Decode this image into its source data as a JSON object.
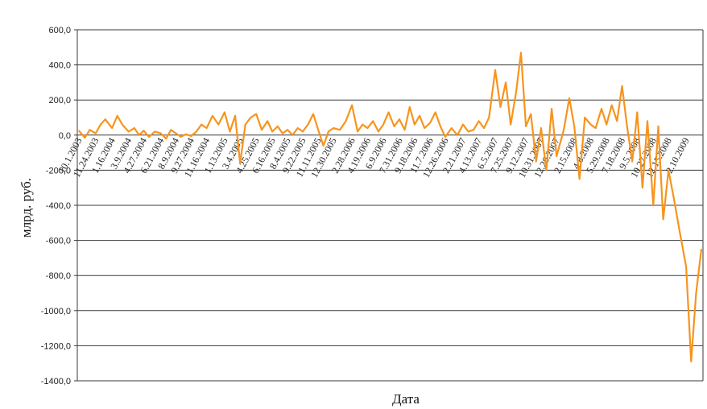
{
  "chart_data": {
    "type": "line",
    "title": "",
    "xlabel": "Дата",
    "ylabel": "млрд. руб.",
    "ylim": [
      -1400,
      600
    ],
    "yticks": [
      600,
      400,
      200,
      0,
      -200,
      -400,
      -600,
      -800,
      -1000,
      -1200,
      -1400
    ],
    "ytick_labels": [
      "600,0",
      "400,0",
      "200,0",
      "0,0",
      "-200,0",
      "-400,0",
      "-600,0",
      "-800,0",
      "-1000,0",
      "-1200,0",
      "-1400,0"
    ],
    "grid": true,
    "legend": "none",
    "line_color": "#f7941d",
    "x_tick_labels": [
      "10.1.2003",
      "11.24.2003",
      "1.16.2004",
      "3.9.2004",
      "4.27.2004",
      "6.21.2004",
      "8.9.2004",
      "9.27.2004",
      "11.16.2004",
      "1.13.2005",
      "3.4.2005",
      "4.25.2005",
      "6.16.2005",
      "8.4.2005",
      "9.22.2005",
      "11.11.2005",
      "12.30.2005",
      "2.28.2006",
      "4.19.2006",
      "6.9.2006",
      "7.31.2006",
      "9.18.2006",
      "11.7.2006",
      "12.26.2006",
      "2.21.2007",
      "4.13.2007",
      "6.5.2007",
      "7.25.2007",
      "9.12.2007",
      "10.31.2007",
      "12.20.2007",
      "2.15.2008",
      "4.8.2008",
      "5.29.2008",
      "7.18.2008",
      "9.5.2008",
      "10.27.2008",
      "12.15.2008",
      "2.10.2009"
    ],
    "series": [
      {
        "x": [
          "10.1.2003",
          "10.20.2003",
          "11.5.2003",
          "11.24.2003",
          "12.10.2003",
          "12.25.2003",
          "1.16.2004",
          "2.2.2004",
          "2.18.2004",
          "3.9.2004",
          "3.28.2004",
          "4.12.2004",
          "4.27.2004",
          "5.14.2004",
          "6.2.2004",
          "6.21.2004",
          "7.8.2004",
          "7.24.2004",
          "8.9.2004",
          "8.25.2004",
          "9.10.2004",
          "9.27.2004",
          "10.14.2004",
          "10.30.2004",
          "11.16.2004",
          "12.5.2004",
          "12.24.2004",
          "1.13.2005",
          "1.30.2005",
          "2.16.2005",
          "3.4.2005",
          "3.21.2005",
          "4.7.2005",
          "4.25.2005",
          "5.13.2005",
          "5.31.2005",
          "6.16.2005",
          "7.3.2005",
          "7.19.2005",
          "8.4.2005",
          "8.20.2005",
          "9.6.2005",
          "9.22.2005",
          "10.9.2005",
          "10.26.2005",
          "11.11.2005",
          "11.28.2005",
          "12.14.2005",
          "12.30.2005",
          "1.20.2006",
          "2.8.2006",
          "2.28.2006",
          "3.18.2006",
          "4.3.2006",
          "4.19.2006",
          "5.7.2006",
          "5.24.2006",
          "6.9.2006",
          "6.26.2006",
          "7.14.2006",
          "7.31.2006",
          "8.17.2006",
          "9.2.2006",
          "9.18.2006",
          "10.4.2006",
          "10.20.2006",
          "11.7.2006",
          "11.24.2006",
          "12.10.2006",
          "12.26.2006",
          "1.15.2007",
          "2.3.2007",
          "2.21.2007",
          "3.10.2007",
          "3.27.2007",
          "4.13.2007",
          "4.30.2007",
          "5.16.2007",
          "6.5.2007",
          "6.22.2007",
          "7.9.2007",
          "7.25.2007",
          "8.11.2007",
          "8.27.2007",
          "9.12.2007",
          "9.28.2007",
          "10.15.2007",
          "10.31.2007",
          "11.17.2007",
          "12.4.2007",
          "12.20.2007",
          "1.12.2008",
          "1.30.2008",
          "2.15.2008",
          "3.3.2008",
          "3.20.2008",
          "4.8.2008",
          "4.24.2008",
          "5.13.2008",
          "5.29.2008",
          "6.15.2008",
          "7.2.2008",
          "7.18.2008",
          "8.4.2008",
          "8.20.2008",
          "9.5.2008",
          "9.22.2008",
          "10.8.2008",
          "10.27.2008",
          "11.12.2008",
          "11.28.2008",
          "12.15.2008",
          "12.31.2008",
          "1.20.2009",
          "2.10.2009",
          "2.26.2009",
          "3.14.2009",
          "3.31.2009"
        ],
        "values": [
          25,
          -15,
          30,
          10,
          60,
          90,
          40,
          110,
          60,
          20,
          40,
          0,
          25,
          -10,
          20,
          10,
          -20,
          30,
          10,
          -10,
          5,
          -5,
          20,
          60,
          40,
          110,
          60,
          130,
          20,
          110,
          -160,
          60,
          100,
          120,
          30,
          80,
          20,
          50,
          10,
          30,
          0,
          40,
          20,
          60,
          120,
          30,
          -60,
          20,
          40,
          30,
          80,
          170,
          20,
          60,
          40,
          80,
          20,
          60,
          130,
          50,
          90,
          30,
          160,
          60,
          110,
          40,
          70,
          130,
          50,
          -10,
          40,
          0,
          60,
          20,
          30,
          80,
          40,
          100,
          370,
          160,
          300,
          60,
          240,
          470,
          50,
          120,
          -150,
          40,
          -200,
          150,
          -120,
          30,
          210,
          50,
          -250,
          100,
          60,
          40,
          150,
          60,
          170,
          80,
          280,
          40,
          -150,
          130,
          -300,
          80,
          -400,
          50,
          -480,
          -200,
          -350,
          -550,
          -750,
          -1290,
          -900,
          -650
        ]
      }
    ]
  }
}
